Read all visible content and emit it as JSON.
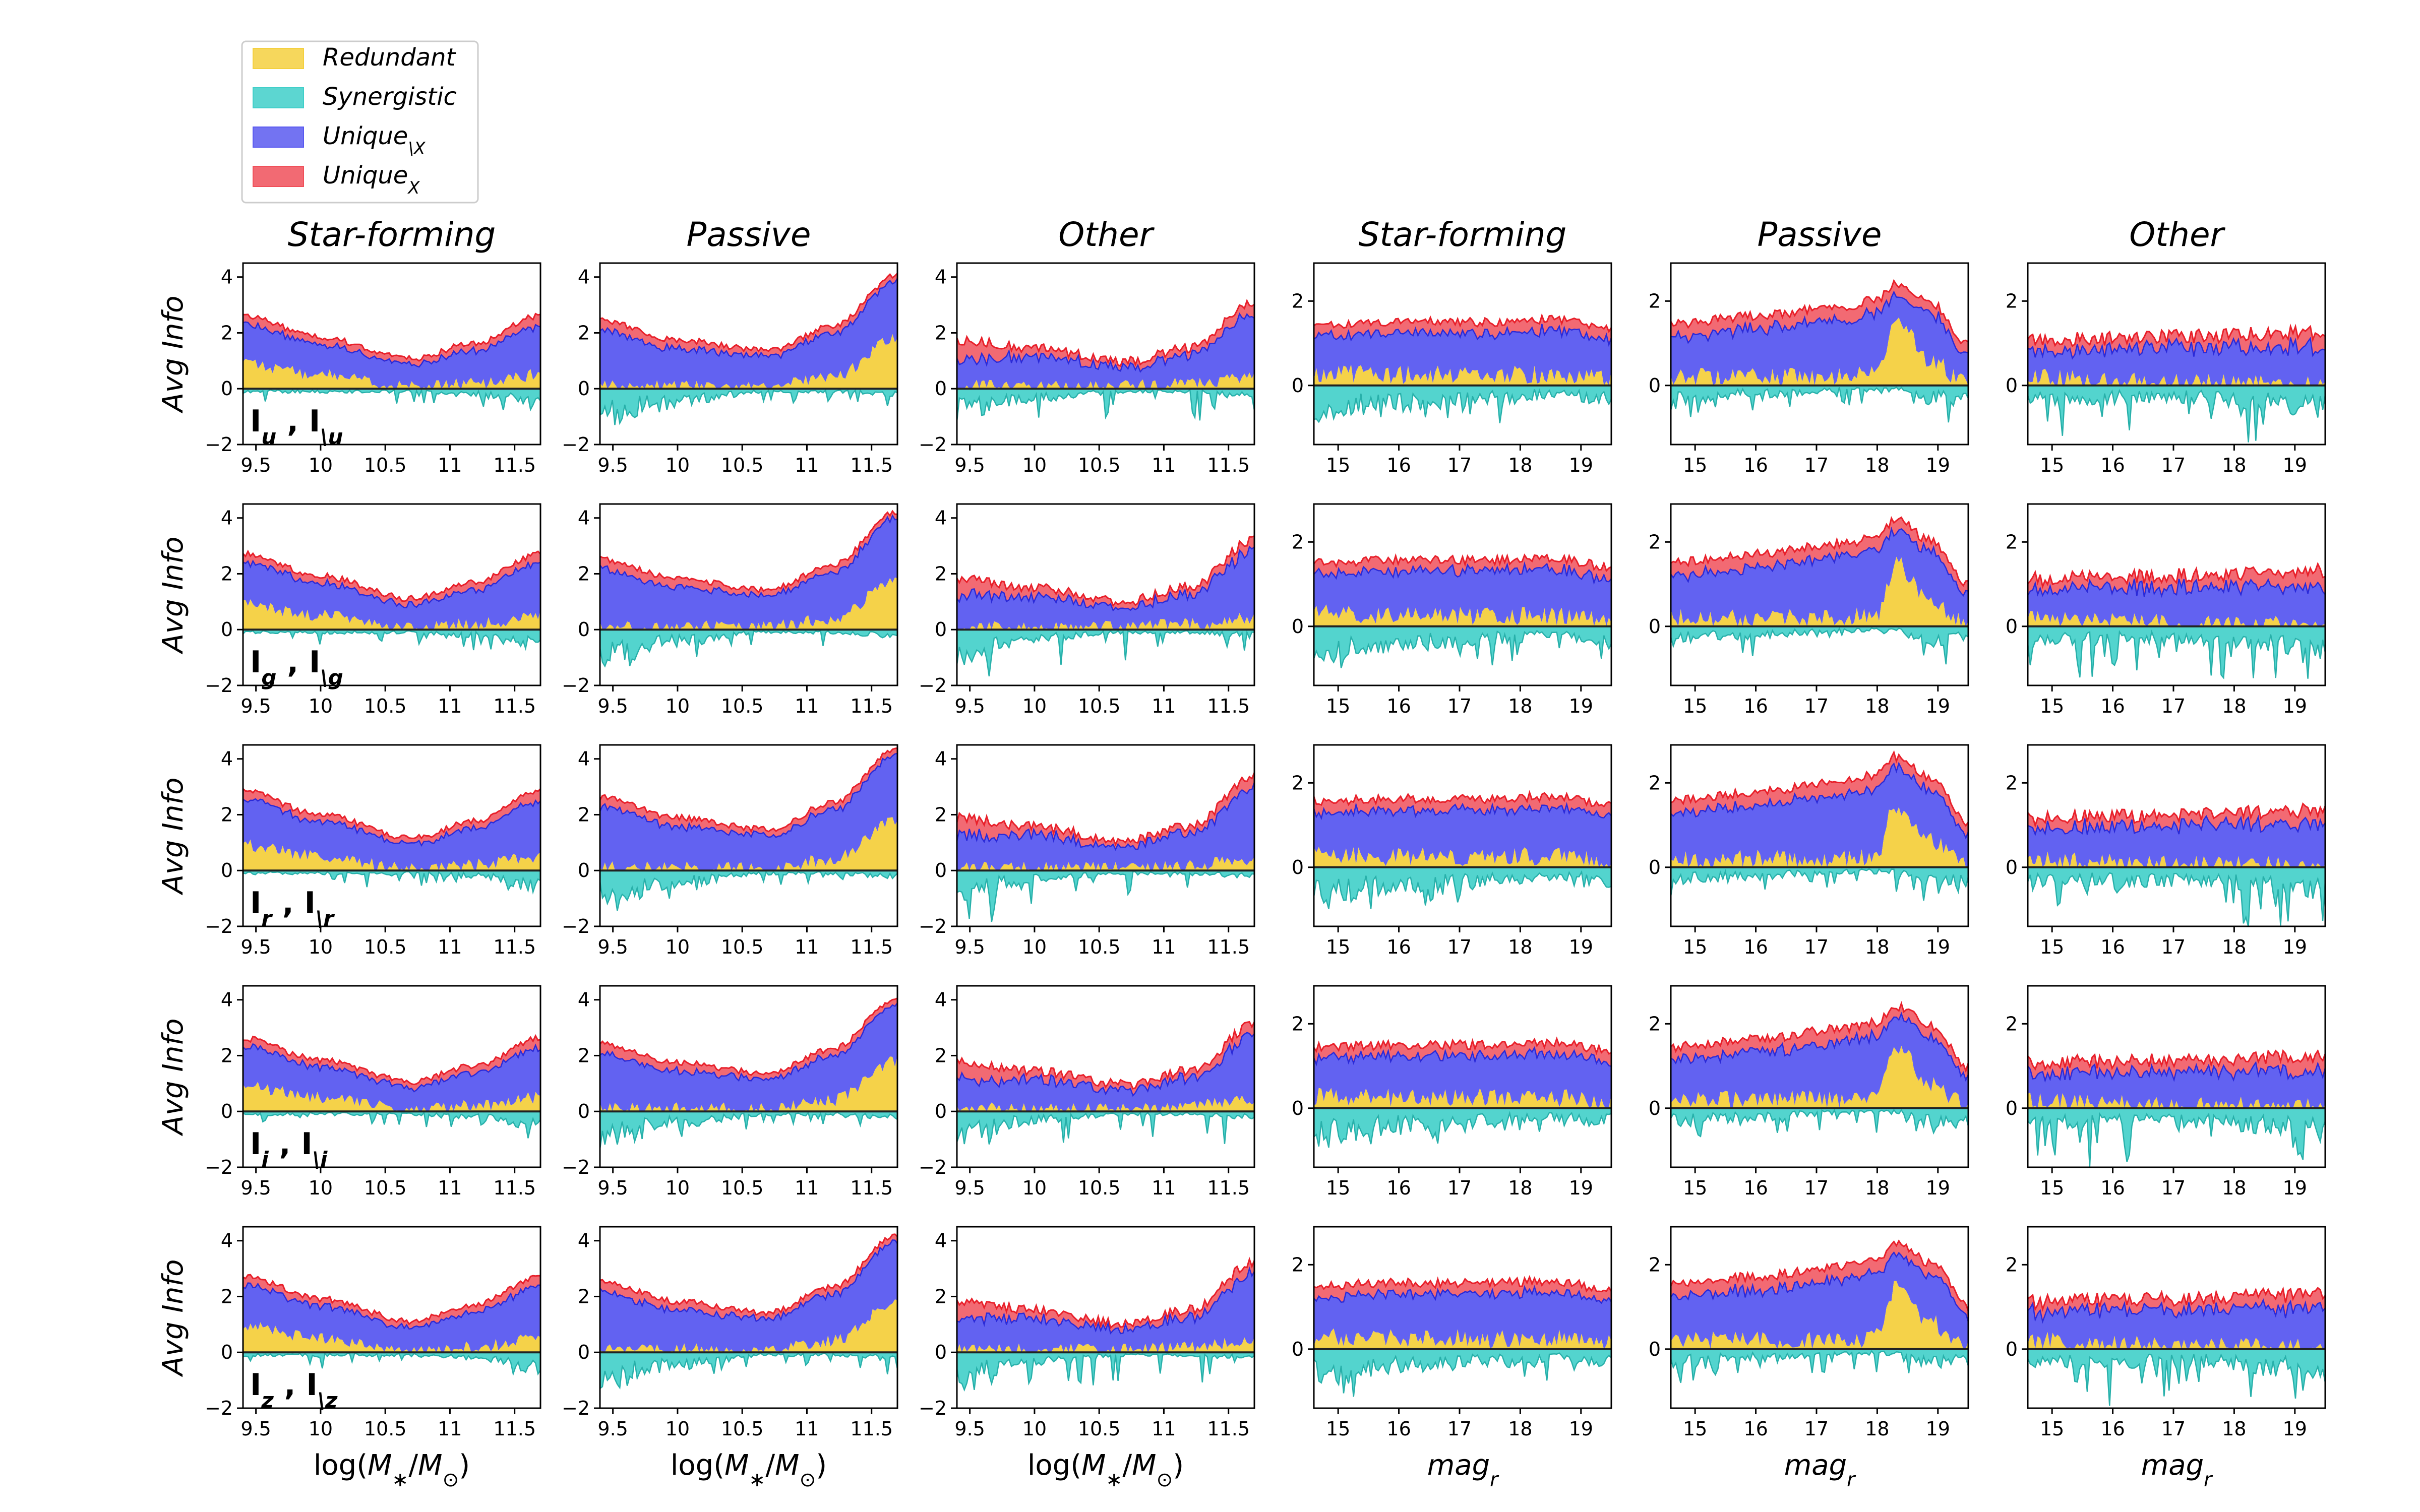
{
  "chart_data": {
    "type": "area",
    "title": "",
    "legend": {
      "placement": "top-left",
      "entries": [
        {
          "name": "Redundant",
          "color": "#f4d03f"
        },
        {
          "name": "Synergistic",
          "color": "#40cfc9"
        },
        {
          "name": "Unique\\X",
          "color": "#5a5af0"
        },
        {
          "name": "UniqueX",
          "color": "#f0505a"
        }
      ]
    },
    "columns": [
      {
        "title": "Star-forming",
        "xlabel": "log(M*/M⊙)",
        "xkind": "mass",
        "xlim": [
          9.4,
          11.7
        ],
        "ylim": [
          -2,
          4.5
        ],
        "yticks": [
          -2,
          0,
          2,
          4
        ],
        "xticks": [
          "9.5",
          "10",
          "10.5",
          "11",
          "11.5"
        ],
        "xtick_values": [
          9.5,
          10,
          10.5,
          11,
          11.5
        ]
      },
      {
        "title": "Passive",
        "xlabel": "log(M*/M⊙)",
        "xkind": "mass",
        "xlim": [
          9.4,
          11.7
        ],
        "ylim": [
          -2,
          4.5
        ],
        "yticks": [
          -2,
          0,
          2,
          4
        ],
        "xticks": [
          "9.5",
          "10",
          "10.5",
          "11",
          "11.5"
        ],
        "xtick_values": [
          9.5,
          10,
          10.5,
          11,
          11.5
        ]
      },
      {
        "title": "Other",
        "xlabel": "log(M*/M⊙)",
        "xkind": "mass",
        "xlim": [
          9.4,
          11.7
        ],
        "ylim": [
          -2,
          4.5
        ],
        "yticks": [
          -2,
          0,
          2,
          4
        ],
        "xticks": [
          "9.5",
          "10",
          "10.5",
          "11",
          "11.5"
        ],
        "xtick_values": [
          9.5,
          10,
          10.5,
          11,
          11.5
        ]
      },
      {
        "title": "Star-forming",
        "xlabel": "magr",
        "xkind": "mag",
        "xlim": [
          14.6,
          19.5
        ],
        "ylim": [
          -1.4,
          2.9
        ],
        "yticks": [
          0,
          2
        ],
        "xticks": [
          "15",
          "16",
          "17",
          "18",
          "19"
        ],
        "xtick_values": [
          15,
          16,
          17,
          18,
          19
        ]
      },
      {
        "title": "Passive",
        "xlabel": "magr",
        "xkind": "mag",
        "xlim": [
          14.6,
          19.5
        ],
        "ylim": [
          -1.4,
          2.9
        ],
        "yticks": [
          0,
          2
        ],
        "xticks": [
          "15",
          "16",
          "17",
          "18",
          "19"
        ],
        "xtick_values": [
          15,
          16,
          17,
          18,
          19
        ]
      },
      {
        "title": "Other",
        "xlabel": "magr",
        "xkind": "mag",
        "xlim": [
          14.6,
          19.5
        ],
        "ylim": [
          -1.4,
          2.9
        ],
        "yticks": [
          0,
          2
        ],
        "xticks": [
          "15",
          "16",
          "17",
          "18",
          "19"
        ],
        "xtick_values": [
          15,
          16,
          17,
          18,
          19
        ]
      }
    ],
    "rows": [
      {
        "band": "u",
        "ylabel": "Avg Info",
        "label": "Iu , I\\u"
      },
      {
        "band": "g",
        "ylabel": "Avg Info",
        "label": "Ig , I\\g"
      },
      {
        "band": "r",
        "ylabel": "Avg Info",
        "label": "Ir , I\\r"
      },
      {
        "band": "i",
        "ylabel": "Avg Info",
        "label": "Ii , I\\i"
      },
      {
        "band": "z",
        "ylabel": "Avg Info",
        "label": "Iz , I\\z"
      }
    ],
    "profiles": {
      "mass_star_forming": {
        "x": [
          9.4,
          10.0,
          10.7,
          11.2,
          11.7
        ],
        "total": [
          2.7,
          1.9,
          1.1,
          1.7,
          2.7
        ],
        "unique_x": [
          0.3,
          0.25,
          0.2,
          0.25,
          0.35
        ],
        "redundant": [
          0.9,
          0.5,
          0.05,
          0.2,
          0.5
        ],
        "synergistic": [
          -0.1,
          -0.1,
          -0.1,
          -0.2,
          -0.5
        ]
      },
      "mass_passive": {
        "x": [
          9.4,
          10.0,
          10.7,
          11.2,
          11.7
        ],
        "total": [
          2.5,
          1.8,
          1.4,
          2.3,
          4.2
        ],
        "unique_x": [
          0.35,
          0.3,
          0.2,
          0.25,
          0.2
        ],
        "redundant": [
          0.1,
          0.1,
          0.1,
          0.4,
          1.8
        ],
        "synergistic": [
          -0.9,
          -0.4,
          -0.1,
          -0.1,
          -0.2
        ]
      },
      "mass_other": {
        "x": [
          9.4,
          10.0,
          10.7,
          11.2,
          11.7
        ],
        "total": [
          1.8,
          1.5,
          1.0,
          1.5,
          3.2
        ],
        "unique_x": [
          0.6,
          0.3,
          0.2,
          0.25,
          0.4
        ],
        "redundant": [
          0.1,
          0.1,
          0.1,
          0.2,
          0.4
        ],
        "synergistic": [
          -0.8,
          -0.3,
          -0.1,
          -0.1,
          -0.2
        ]
      },
      "mag_star_forming": {
        "x": [
          14.6,
          16.0,
          17.5,
          18.5,
          19.5
        ],
        "total": [
          1.5,
          1.55,
          1.55,
          1.6,
          1.4
        ],
        "unique_x": [
          0.25,
          0.25,
          0.25,
          0.25,
          0.25
        ],
        "redundant": [
          0.3,
          0.25,
          0.25,
          0.25,
          0.15
        ],
        "synergistic": [
          -0.6,
          -0.4,
          -0.3,
          -0.2,
          -0.3
        ]
      },
      "mag_passive": {
        "x": [
          14.6,
          16.0,
          17.5,
          18.0,
          18.3,
          18.9,
          19.5
        ],
        "total": [
          1.5,
          1.7,
          1.95,
          2.1,
          2.5,
          2.0,
          1.0
        ],
        "unique_x": [
          0.3,
          0.3,
          0.3,
          0.3,
          0.25,
          0.25,
          0.25
        ],
        "redundant": [
          0.2,
          0.2,
          0.2,
          0.3,
          1.5,
          0.6,
          0.0
        ],
        "synergistic": [
          -0.3,
          -0.2,
          -0.1,
          -0.1,
          -0.1,
          -0.3,
          -0.3
        ]
      },
      "mag_other": {
        "x": [
          14.6,
          16.0,
          17.5,
          18.5,
          19.5
        ],
        "total": [
          1.1,
          1.15,
          1.2,
          1.25,
          1.3
        ],
        "unique_x": [
          0.25,
          0.25,
          0.25,
          0.3,
          0.35
        ],
        "redundant": [
          0.2,
          0.1,
          0.05,
          0.05,
          0.0
        ],
        "synergistic": [
          -0.3,
          -0.3,
          -0.3,
          -0.4,
          -0.5
        ]
      }
    },
    "grid": false
  }
}
